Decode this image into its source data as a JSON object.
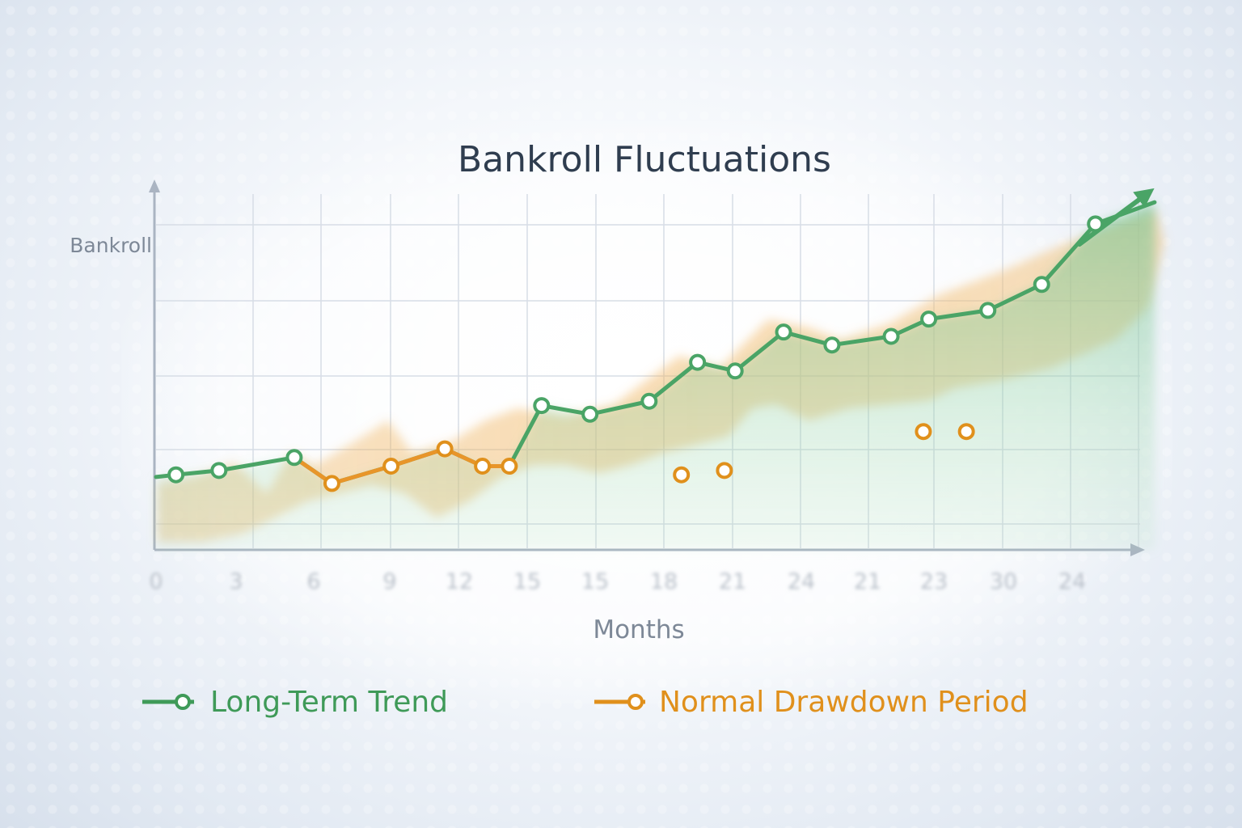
{
  "chart_data": {
    "type": "line",
    "title": "Bankroll Fluctuations",
    "xlabel": "Months",
    "ylabel": "Bankroll",
    "x_tick_labels": [
      "0",
      "3",
      "6",
      "9",
      "12",
      "15",
      "15",
      "18",
      "21",
      "24",
      "21",
      "23",
      "30",
      "24"
    ],
    "grid": true,
    "legend_placement": "bottom",
    "series": [
      {
        "name": "Long-Term Trend",
        "color": "#3f9a58",
        "x": [
          0.4,
          1.2,
          2.6,
          3.3,
          4.4,
          5.4,
          6.1,
          6.6,
          7.2,
          8.1,
          9.2,
          10.1,
          10.8,
          11.7,
          12.6,
          13.7,
          14.4,
          15.5,
          16.5,
          17.5,
          18.6
        ],
        "y": [
          0.8,
          0.9,
          1.2,
          0.6,
          1.0,
          1.4,
          1.0,
          1.0,
          2.4,
          2.2,
          2.5,
          3.4,
          3.2,
          4.1,
          3.8,
          4.0,
          4.4,
          4.6,
          5.2,
          6.6,
          7.1
        ]
      },
      {
        "name": "Normal Drawdown Period",
        "color": "#e0901c",
        "x": [
          3.3,
          4.4,
          5.4,
          6.1,
          6.6,
          9.8,
          10.6,
          14.3,
          15.1
        ],
        "y": [
          0.6,
          1.0,
          1.4,
          1.0,
          1.0,
          0.8,
          0.9,
          1.8,
          1.8
        ]
      }
    ]
  },
  "colors": {
    "trend": "#3f9a58",
    "drawdown": "#e0901c",
    "grid": "#d3dae3",
    "axis": "#aab4c2"
  }
}
